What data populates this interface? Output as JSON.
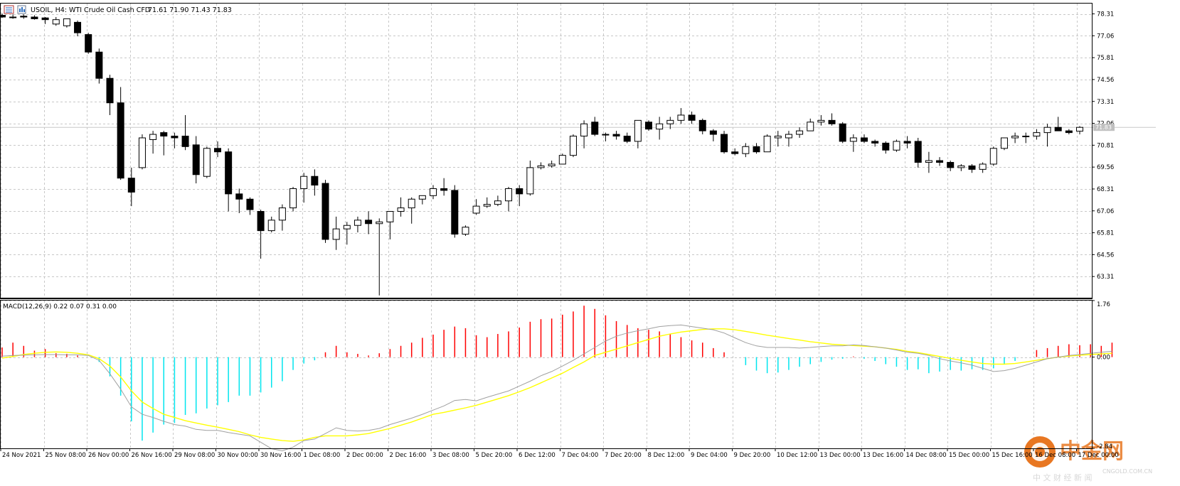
{
  "header": {
    "symbol": "USOIL, H4:",
    "description": "WTI Crude Oil Cash CFD",
    "ohlc": "71.61 71.90 71.43 71.83"
  },
  "macd_header": "MACD(12,26,9) 0.22 0.07 0.31 0.00",
  "current_price_label": "71.83",
  "watermark": {
    "brand": "中金网",
    "sub_left": "中 文 财 经 新 闻",
    "domain": "CNGOLD.COM.CN"
  },
  "colors": {
    "bull_body": "#ffffff",
    "bear_body": "#000000",
    "macd_positive": "#ff0000",
    "macd_negative": "#00e5ee",
    "signal": "#ffff00",
    "macd_line": "#a0a0a0",
    "grid": "#c8c8c8",
    "watermark": "#e87722"
  },
  "chart_data": [
    {
      "type": "candlestick",
      "title": "USOIL, H4: WTI Crude Oil Cash CFD",
      "ylim": [
        62.1,
        78.9
      ],
      "y_ticks": [
        "78.31",
        "77.06",
        "75.81",
        "74.56",
        "73.31",
        "72.06",
        "70.81",
        "69.56",
        "68.31",
        "67.06",
        "65.81",
        "64.56",
        "63.31"
      ],
      "x_labels": [
        "24 Nov 2021",
        "25 Nov 08:00",
        "26 Nov 00:00",
        "26 Nov 16:00",
        "29 Nov 08:00",
        "30 Nov 00:00",
        "30 Nov 16:00",
        "1 Dec 08:00",
        "2 Dec 00:00",
        "2 Dec 16:00",
        "3 Dec 08:00",
        "5 Dec 20:00",
        "6 Dec 12:00",
        "7 Dec 04:00",
        "7 Dec 20:00",
        "8 Dec 12:00",
        "9 Dec 04:00",
        "9 Dec 20:00",
        "10 Dec 12:00",
        "13 Dec 00:00",
        "13 Dec 16:00",
        "14 Dec 08:00",
        "15 Dec 00:00",
        "15 Dec 16:00",
        "16 Dec 08:00",
        "17 Dec 00:00"
      ],
      "grid": true,
      "current_price": 71.83,
      "candles": [
        [
          78.23,
          78.33,
          78.08,
          78.13
        ],
        [
          78.13,
          78.28,
          78.03,
          78.13
        ],
        [
          78.18,
          78.28,
          78.03,
          78.13
        ],
        [
          78.13,
          78.23,
          77.98,
          78.03
        ],
        [
          78.08,
          78.13,
          77.73,
          77.98
        ],
        [
          77.73,
          78.13,
          77.63,
          77.98
        ],
        [
          77.63,
          78.03,
          77.53,
          78.03
        ],
        [
          77.83,
          77.93,
          77.03,
          77.23
        ],
        [
          77.13,
          77.23,
          76.03,
          76.13
        ],
        [
          76.13,
          76.33,
          74.33,
          74.63
        ],
        [
          74.63,
          74.83,
          72.53,
          73.23
        ],
        [
          73.23,
          74.13,
          68.83,
          68.93
        ],
        [
          68.93,
          69.53,
          67.33,
          68.13
        ],
        [
          69.53,
          71.43,
          69.43,
          71.23
        ],
        [
          71.13,
          71.63,
          70.33,
          71.43
        ],
        [
          71.53,
          71.63,
          70.23,
          71.33
        ],
        [
          71.33,
          71.53,
          70.63,
          71.23
        ],
        [
          71.33,
          72.53,
          70.53,
          70.73
        ],
        [
          70.83,
          71.33,
          68.63,
          69.13
        ],
        [
          69.03,
          70.73,
          68.93,
          70.63
        ],
        [
          70.63,
          71.03,
          70.13,
          70.43
        ],
        [
          70.43,
          70.63,
          67.03,
          68.03
        ],
        [
          68.03,
          68.33,
          66.93,
          67.73
        ],
        [
          67.73,
          67.83,
          66.83,
          67.13
        ],
        [
          67.03,
          67.13,
          64.33,
          65.93
        ],
        [
          65.93,
          66.73,
          65.83,
          66.53
        ],
        [
          66.53,
          67.43,
          65.93,
          67.23
        ],
        [
          67.23,
          68.43,
          67.03,
          68.33
        ],
        [
          68.33,
          69.23,
          67.53,
          69.03
        ],
        [
          69.03,
          69.43,
          67.93,
          68.53
        ],
        [
          68.63,
          68.83,
          65.23,
          65.43
        ],
        [
          65.43,
          66.73,
          64.83,
          66.03
        ],
        [
          66.03,
          66.43,
          65.13,
          66.23
        ],
        [
          66.23,
          66.73,
          65.83,
          66.53
        ],
        [
          66.53,
          67.03,
          65.73,
          66.33
        ],
        [
          66.33,
          66.63,
          62.23,
          66.43
        ],
        [
          66.43,
          67.03,
          65.43,
          67.03
        ],
        [
          67.03,
          67.83,
          66.73,
          67.23
        ],
        [
          67.23,
          67.83,
          66.33,
          67.73
        ],
        [
          67.73,
          67.93,
          67.43,
          67.93
        ],
        [
          67.93,
          68.53,
          67.73,
          68.33
        ],
        [
          68.33,
          68.93,
          67.93,
          68.23
        ],
        [
          68.23,
          68.53,
          65.53,
          65.73
        ],
        [
          65.73,
          66.23,
          65.63,
          66.13
        ],
        [
          66.93,
          67.73,
          66.83,
          67.33
        ],
        [
          67.33,
          67.83,
          67.23,
          67.43
        ],
        [
          67.43,
          67.93,
          67.33,
          67.63
        ],
        [
          67.63,
          68.43,
          67.03,
          68.33
        ],
        [
          68.33,
          68.53,
          67.33,
          68.03
        ],
        [
          68.03,
          69.93,
          67.93,
          69.53
        ],
        [
          69.53,
          69.83,
          69.43,
          69.63
        ],
        [
          69.63,
          69.93,
          69.53,
          69.73
        ],
        [
          69.73,
          70.33,
          69.73,
          70.23
        ],
        [
          70.23,
          71.43,
          70.13,
          71.33
        ],
        [
          71.33,
          72.23,
          70.63,
          72.03
        ],
        [
          72.13,
          72.43,
          71.33,
          71.43
        ],
        [
          71.43,
          71.53,
          71.03,
          71.43
        ],
        [
          71.43,
          71.63,
          71.13,
          71.33
        ],
        [
          71.33,
          71.53,
          70.93,
          71.03
        ],
        [
          71.03,
          72.23,
          70.63,
          72.23
        ],
        [
          72.13,
          72.23,
          71.63,
          71.73
        ],
        [
          71.73,
          72.43,
          71.13,
          72.03
        ],
        [
          72.03,
          72.43,
          71.73,
          72.23
        ],
        [
          72.23,
          72.93,
          72.03,
          72.53
        ],
        [
          72.53,
          72.73,
          72.03,
          72.23
        ],
        [
          72.23,
          72.33,
          71.43,
          71.63
        ],
        [
          71.63,
          71.73,
          71.03,
          71.43
        ],
        [
          71.43,
          71.63,
          70.33,
          70.43
        ],
        [
          70.43,
          70.63,
          70.23,
          70.33
        ],
        [
          70.33,
          70.93,
          70.13,
          70.73
        ],
        [
          70.73,
          70.93,
          70.33,
          70.43
        ],
        [
          70.43,
          71.43,
          70.43,
          71.33
        ],
        [
          71.23,
          71.63,
          70.73,
          71.33
        ],
        [
          71.23,
          71.63,
          70.73,
          71.43
        ],
        [
          71.43,
          71.83,
          71.23,
          71.63
        ],
        [
          71.63,
          72.33,
          71.63,
          72.13
        ],
        [
          72.13,
          72.53,
          71.93,
          72.23
        ],
        [
          72.23,
          72.63,
          71.93,
          72.03
        ],
        [
          72.03,
          72.13,
          70.93,
          71.03
        ],
        [
          71.03,
          71.43,
          70.43,
          71.23
        ],
        [
          71.23,
          71.43,
          70.93,
          71.03
        ],
        [
          71.03,
          71.13,
          70.73,
          70.93
        ],
        [
          70.93,
          71.03,
          70.33,
          70.53
        ],
        [
          70.53,
          71.13,
          70.43,
          71.03
        ],
        [
          71.03,
          71.33,
          70.63,
          70.93
        ],
        [
          71.03,
          71.23,
          69.53,
          69.83
        ],
        [
          69.83,
          70.43,
          69.23,
          69.93
        ],
        [
          69.93,
          70.13,
          69.63,
          69.83
        ],
        [
          69.83,
          69.93,
          69.33,
          69.53
        ],
        [
          69.53,
          69.73,
          69.33,
          69.63
        ],
        [
          69.63,
          69.73,
          69.23,
          69.43
        ],
        [
          69.43,
          69.83,
          69.23,
          69.73
        ],
        [
          69.73,
          70.73,
          69.63,
          70.63
        ],
        [
          70.63,
          71.23,
          70.53,
          71.23
        ],
        [
          71.23,
          71.53,
          70.93,
          71.33
        ],
        [
          71.33,
          71.53,
          70.93,
          71.33
        ],
        [
          71.33,
          71.73,
          71.13,
          71.53
        ],
        [
          71.53,
          72.03,
          70.73,
          71.83
        ],
        [
          71.83,
          72.43,
          71.63,
          71.63
        ],
        [
          71.63,
          71.73,
          71.43,
          71.53
        ],
        [
          71.61,
          71.9,
          71.43,
          71.83
        ]
      ]
    },
    {
      "type": "bar",
      "title": "MACD(12,26,9) 0.22 0.07 0.31 0.00",
      "ylim": [
        -2.84,
        1.76
      ],
      "y_ticks": [
        "1.76",
        "0.00",
        "-2.84"
      ],
      "series": [
        {
          "name": "MACD",
          "values": [
            0.3,
            0.45,
            0.35,
            0.2,
            0.25,
            0.12,
            0.1,
            0.05,
            0.0,
            -0.15,
            -0.6,
            -1.2,
            -2.0,
            -2.6,
            -2.35,
            -2.1,
            -2.05,
            -1.8,
            -1.75,
            -1.6,
            -1.5,
            -1.4,
            -1.2,
            -1.2,
            -1.1,
            -0.95,
            -0.75,
            -0.4,
            -0.2,
            -0.1,
            0.15,
            0.35,
            0.15,
            0.1,
            0.05,
            0.12,
            0.25,
            0.35,
            0.45,
            0.6,
            0.7,
            0.85,
            0.95,
            0.9,
            0.68,
            0.62,
            0.72,
            0.8,
            0.92,
            1.1,
            1.18,
            1.2,
            1.32,
            1.42,
            1.6,
            1.5,
            1.3,
            1.12,
            1.0,
            0.9,
            0.85,
            0.8,
            0.72,
            0.62,
            0.52,
            0.45,
            0.28,
            0.15,
            0.0,
            -0.25,
            -0.42,
            -0.5,
            -0.48,
            -0.4,
            -0.3,
            -0.22,
            -0.15,
            -0.08,
            -0.05,
            0.02,
            -0.05,
            -0.12,
            -0.22,
            -0.3,
            -0.4,
            -0.38,
            -0.5,
            -0.45,
            -0.4,
            -0.42,
            -0.38,
            -0.4,
            -0.35,
            -0.22,
            -0.12,
            0.0,
            0.22,
            0.28,
            0.35,
            0.4,
            0.37,
            0.4,
            0.35,
            0.45
          ]
        },
        {
          "name": "Signal",
          "values": [
            -0.03,
            0.02,
            0.08,
            0.12,
            0.15,
            0.16,
            0.15,
            0.12,
            0.07,
            -0.05,
            -0.28,
            -0.62,
            -1.05,
            -1.4,
            -1.6,
            -1.78,
            -1.88,
            -1.98,
            -2.05,
            -2.12,
            -2.18,
            -2.25,
            -2.32,
            -2.42,
            -2.5,
            -2.55,
            -2.6,
            -2.62,
            -2.58,
            -2.5,
            -2.45,
            -2.45,
            -2.45,
            -2.42,
            -2.38,
            -2.3,
            -2.22,
            -2.12,
            -2.02,
            -1.9,
            -1.78,
            -1.72,
            -1.65,
            -1.58,
            -1.5,
            -1.4,
            -1.3,
            -1.2,
            -1.08,
            -0.95,
            -0.8,
            -0.65,
            -0.5,
            -0.32,
            -0.15,
            0.05,
            0.15,
            0.25,
            0.35,
            0.45,
            0.55,
            0.65,
            0.72,
            0.78,
            0.82,
            0.86,
            0.88,
            0.88,
            0.85,
            0.8,
            0.74,
            0.68,
            0.63,
            0.58,
            0.53,
            0.48,
            0.44,
            0.4,
            0.38,
            0.36,
            0.34,
            0.32,
            0.28,
            0.24,
            0.18,
            0.14,
            0.08,
            0.02,
            -0.04,
            -0.1,
            -0.15,
            -0.2,
            -0.22,
            -0.22,
            -0.2,
            -0.15,
            -0.1,
            -0.05,
            0.0,
            0.03,
            0.06,
            0.08,
            0.1,
            0.12
          ]
        },
        {
          "name": "MACD line",
          "values": [
            0.03,
            0.05,
            0.06,
            0.07,
            0.08,
            0.08,
            0.07,
            0.07,
            0.05,
            -0.1,
            -0.52,
            -1.0,
            -1.55,
            -1.78,
            -1.88,
            -2.0,
            -2.1,
            -2.15,
            -2.25,
            -2.28,
            -2.28,
            -2.35,
            -2.4,
            -2.45,
            -2.65,
            -2.85,
            -2.92,
            -2.8,
            -2.6,
            -2.55,
            -2.38,
            -2.2,
            -2.28,
            -2.3,
            -2.28,
            -2.22,
            -2.1,
            -2.0,
            -1.9,
            -1.78,
            -1.65,
            -1.52,
            -1.35,
            -1.32,
            -1.36,
            -1.25,
            -1.15,
            -1.05,
            -0.9,
            -0.75,
            -0.58,
            -0.45,
            -0.28,
            -0.1,
            0.1,
            0.3,
            0.5,
            0.65,
            0.75,
            0.82,
            0.88,
            0.95,
            0.98,
            1.0,
            0.95,
            0.9,
            0.85,
            0.75,
            0.6,
            0.45,
            0.35,
            0.3,
            0.3,
            0.3,
            0.28,
            0.3,
            0.33,
            0.35,
            0.35,
            0.38,
            0.36,
            0.32,
            0.28,
            0.22,
            0.15,
            0.12,
            0.05,
            -0.05,
            -0.12,
            -0.18,
            -0.25,
            -0.35,
            -0.45,
            -0.42,
            -0.35,
            -0.25,
            -0.15,
            -0.05,
            0.0,
            0.05,
            0.08,
            0.12,
            0.15,
            0.18
          ]
        }
      ]
    }
  ]
}
